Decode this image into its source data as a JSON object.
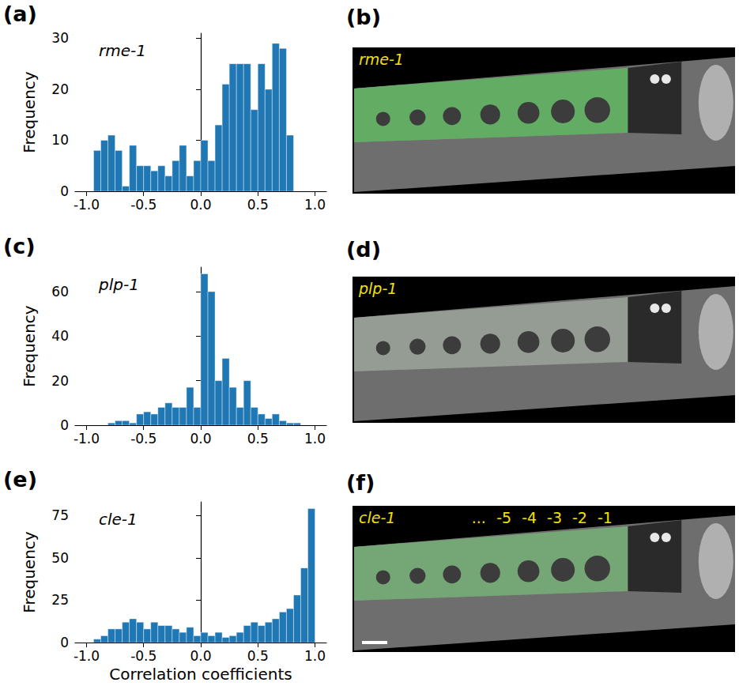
{
  "chart_data": [
    {
      "type": "histogram",
      "panel": "(a)",
      "annotation": "rme-1",
      "color": "#1f77b4",
      "bins": [
        -1,
        -0.9375,
        -0.875,
        -0.8125,
        -0.75,
        -0.6875,
        -0.625,
        -0.5625,
        -0.5,
        -0.4375,
        -0.375,
        -0.3125,
        -0.25,
        -0.1875,
        -0.125,
        -0.0625,
        0,
        0.0625,
        0.125,
        0.1875,
        0.25,
        0.3125,
        0.375,
        0.4375,
        0.5,
        0.5625,
        0.625,
        0.6875,
        0.75,
        0.8125,
        0.875,
        0.9375,
        1
      ],
      "counts": [
        0,
        8,
        10,
        11,
        8,
        1,
        9,
        5,
        5,
        4,
        5,
        3,
        6,
        9,
        3,
        6,
        10,
        6,
        13,
        21,
        25,
        25,
        25,
        16,
        25,
        20,
        29,
        28,
        11,
        0,
        0,
        0
      ],
      "xlim": [
        -1.1,
        1.1
      ],
      "xticks": [
        {
          "value": -1,
          "label": "-1.0"
        },
        {
          "value": -0.5,
          "label": "-0.5"
        },
        {
          "value": 0,
          "label": "0.0"
        },
        {
          "value": 0.5,
          "label": "0.5"
        },
        {
          "value": 1,
          "label": "1.0"
        }
      ],
      "ylim": [
        0,
        31
      ],
      "yticks": [
        0,
        10,
        20,
        30
      ],
      "y_label": "Frequency"
    },
    {
      "type": "histogram",
      "panel": "(c)",
      "annotation": "plp-1",
      "color": "#1f77b4",
      "bins": [
        -1,
        -0.9375,
        -0.875,
        -0.8125,
        -0.75,
        -0.6875,
        -0.625,
        -0.5625,
        -0.5,
        -0.4375,
        -0.375,
        -0.3125,
        -0.25,
        -0.1875,
        -0.125,
        -0.0625,
        0,
        0.0625,
        0.125,
        0.1875,
        0.25,
        0.3125,
        0.375,
        0.4375,
        0.5,
        0.5625,
        0.625,
        0.6875,
        0.75,
        0.8125,
        0.875,
        0.9375,
        1
      ],
      "counts": [
        0,
        0,
        0,
        1,
        2,
        2,
        1,
        5,
        6,
        5,
        8,
        10,
        8,
        8,
        17,
        8,
        68,
        60,
        20,
        30,
        17,
        8,
        20,
        8,
        5,
        3,
        5,
        2,
        1,
        1,
        0,
        0
      ],
      "xlim": [
        -1.1,
        1.1
      ],
      "xticks": [
        {
          "value": -1,
          "label": "-1.0"
        },
        {
          "value": -0.5,
          "label": "-0.5"
        },
        {
          "value": 0,
          "label": "0.0"
        },
        {
          "value": 0.5,
          "label": "0.5"
        },
        {
          "value": 1,
          "label": "1.0"
        }
      ],
      "ylim": [
        0,
        71
      ],
      "yticks": [
        0,
        20,
        40,
        60
      ],
      "y_label": "Frequency"
    },
    {
      "type": "histogram",
      "panel": "(e)",
      "annotation": "cle-1",
      "color": "#1f77b4",
      "bins": [
        -1,
        -0.9375,
        -0.875,
        -0.8125,
        -0.75,
        -0.6875,
        -0.625,
        -0.5625,
        -0.5,
        -0.4375,
        -0.375,
        -0.3125,
        -0.25,
        -0.1875,
        -0.125,
        -0.0625,
        0,
        0.0625,
        0.125,
        0.1875,
        0.25,
        0.3125,
        0.375,
        0.4375,
        0.5,
        0.5625,
        0.625,
        0.6875,
        0.75,
        0.8125,
        0.875,
        0.9375,
        1
      ],
      "counts": [
        0,
        2,
        4,
        8,
        8,
        12,
        14,
        12,
        8,
        12,
        10,
        10,
        8,
        6,
        9,
        4,
        6,
        4,
        6,
        3,
        4,
        6,
        10,
        12,
        10,
        12,
        14,
        18,
        20,
        28,
        44,
        79
      ],
      "xlim": [
        -1.1,
        1.1
      ],
      "xticks": [
        {
          "value": -1,
          "label": "-1.0"
        },
        {
          "value": -0.5,
          "label": "-0.5"
        },
        {
          "value": 0,
          "label": "0.0"
        },
        {
          "value": 0.5,
          "label": "0.5"
        },
        {
          "value": 1,
          "label": "1.0"
        }
      ],
      "ylim": [
        0,
        83
      ],
      "yticks": [
        0,
        25,
        50,
        75
      ],
      "y_label": "Frequency",
      "x_label": "Correlation coefficients"
    }
  ],
  "images": [
    {
      "panel": "(b)",
      "label": "rme-1"
    },
    {
      "panel": "(d)",
      "label": "plp-1"
    },
    {
      "panel": "(f)",
      "label": "cle-1",
      "annotations": [
        "...",
        "-5",
        "-4",
        "-3",
        "-2",
        "-1"
      ]
    }
  ]
}
